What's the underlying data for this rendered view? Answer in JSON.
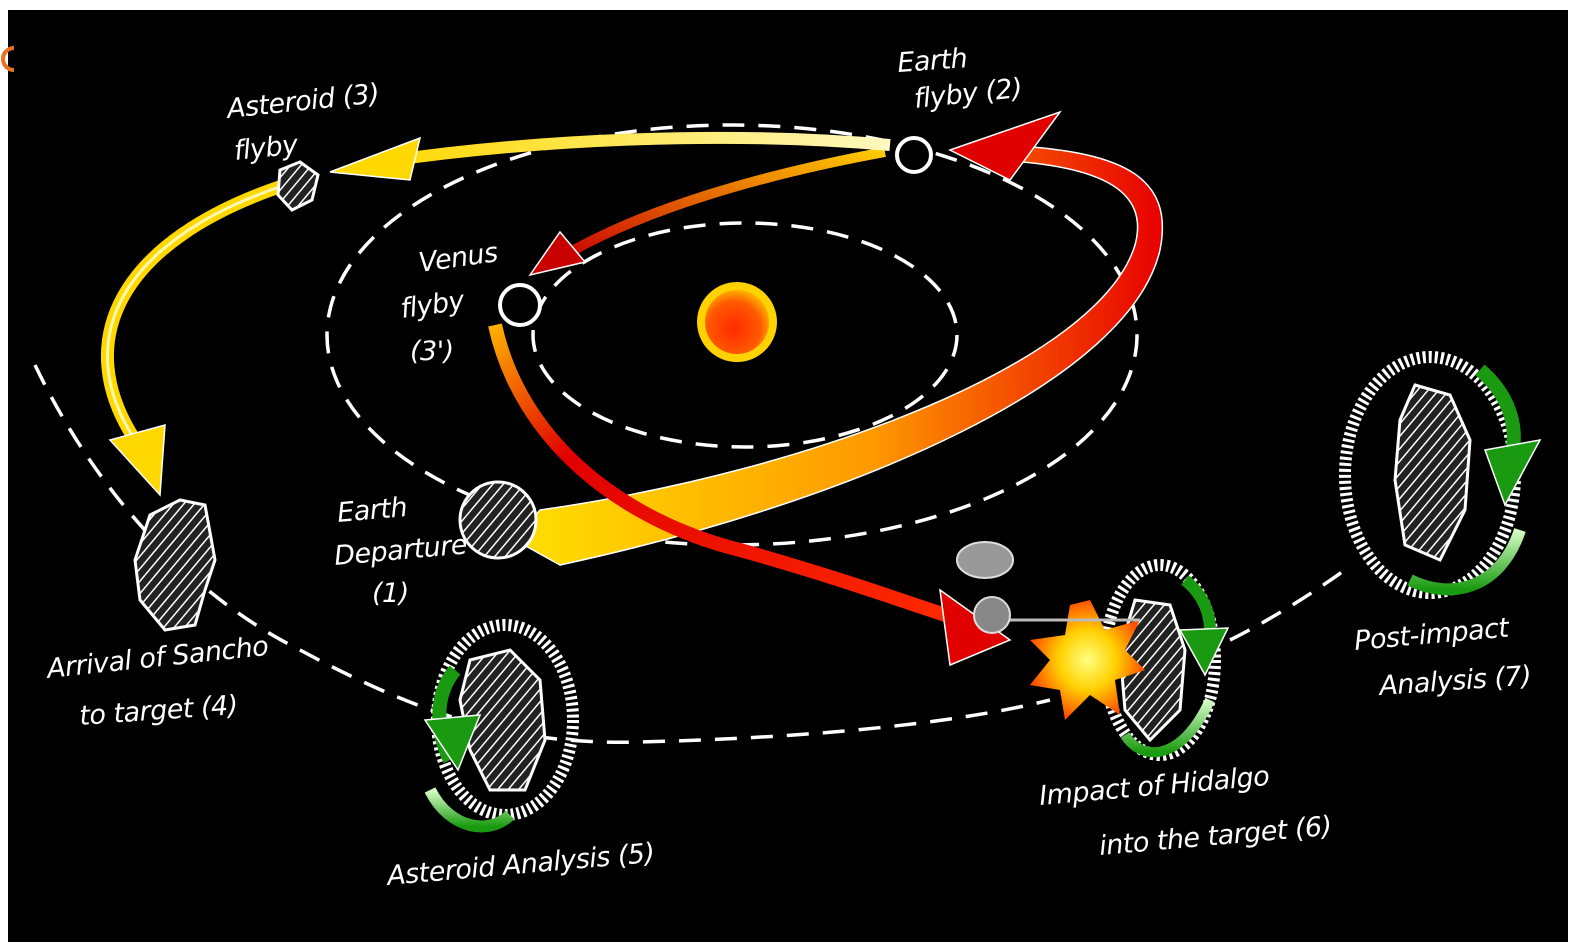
{
  "labels": [
    {
      "lines": [
        "Earth",
        "flyby (2)"
      ]
    },
    {
      "lines": [
        "Asteroid (3)",
        "flyby"
      ]
    },
    {
      "lines": [
        "Venus",
        "flyby",
        "(3')"
      ]
    },
    {
      "lines": [
        "Earth",
        "Departure",
        "(1)"
      ]
    },
    {
      "lines": [
        "Arrival of Sancho",
        "to target (4)"
      ]
    },
    {
      "lines": [
        "Asteroid Analysis (5)"
      ]
    },
    {
      "lines": [
        "Impact of Hidalgo",
        "into the target (6)"
      ]
    },
    {
      "lines": [
        "Post-impact",
        "Analysis (7)"
      ]
    }
  ]
}
